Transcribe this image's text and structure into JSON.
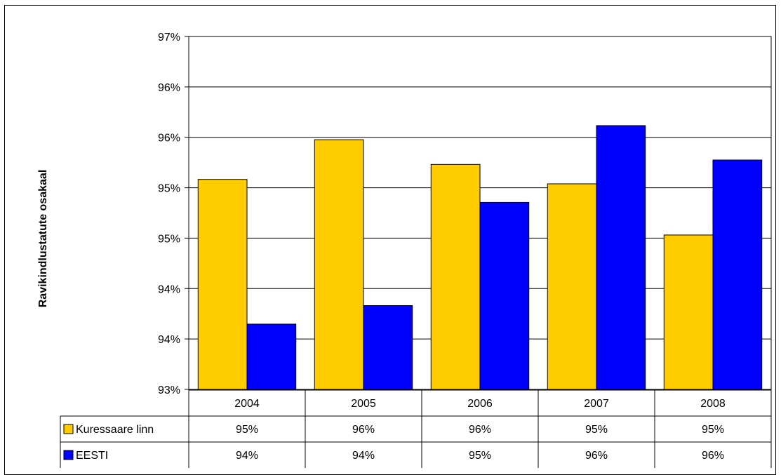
{
  "chart_data": {
    "type": "bar",
    "ylabel": "Ravikindlustatute  osakaal",
    "ylim": [
      93,
      97
    ],
    "ytick_labels": [
      "93%",
      "94%",
      "94%",
      "95%",
      "95%",
      "96%",
      "96%",
      "97%"
    ],
    "categories": [
      "2004",
      "2005",
      "2006",
      "2007",
      "2008"
    ],
    "grid": true,
    "legend": "data-table",
    "series": [
      {
        "name": "Kuressaare linn",
        "color": "#FFCC00",
        "values": [
          95.38,
          95.83,
          95.55,
          95.33,
          94.75
        ],
        "table_labels": [
          "95%",
          "96%",
          "96%",
          "95%",
          "95%"
        ]
      },
      {
        "name": "EESTI",
        "color": "#0000FF",
        "values": [
          93.74,
          93.95,
          95.12,
          95.99,
          95.6
        ],
        "table_labels": [
          "94%",
          "94%",
          "95%",
          "96%",
          "96%"
        ]
      }
    ]
  }
}
